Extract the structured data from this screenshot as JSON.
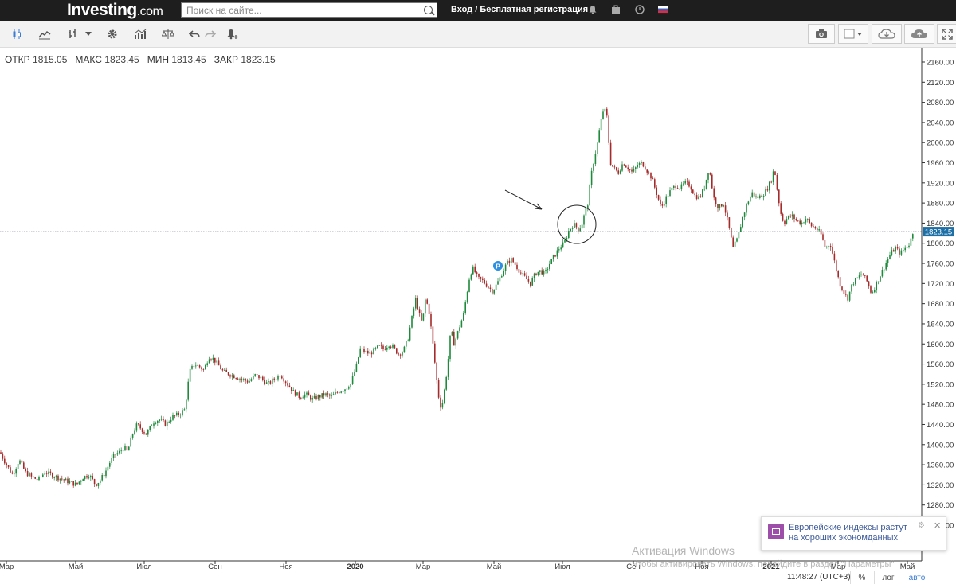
{
  "header": {
    "logo_main": "Investing",
    "logo_suffix": ".com",
    "search_placeholder": "Поиск на сайте...",
    "login_label": "Вход / Бесплатная регистрация"
  },
  "ohlc": {
    "open_label": "ОТКР",
    "open_value": "1815.05",
    "high_label": "МАКС",
    "high_value": "1823.45",
    "low_label": "МИН",
    "low_value": "1813.45",
    "close_label": "ЗАКР",
    "close_value": "1823.15"
  },
  "colors": {
    "up": "#1e8a3c",
    "down": "#a52a2a",
    "axis": "#333333",
    "badge": "#1e6fa5",
    "event_marker": "#2d8fe0"
  },
  "icons": {
    "top": [
      "bell-icon",
      "portfolio-icon",
      "clock-icon",
      "flag-icon"
    ],
    "toolbar_left": [
      "candle-chart-icon",
      "line-chart-icon",
      "bar-chart-icon",
      "dropdown-icon",
      "settings-icon",
      "indicators-icon",
      "compare-icon",
      "undo-icon",
      "redo-icon",
      "alert-icon"
    ],
    "toolbar_right": [
      "camera-icon",
      "layout-icon",
      "download-icon",
      "upload-icon",
      "fullscreen-icon"
    ]
  },
  "chart_data": {
    "type": "candlestick",
    "price_ticks": [
      "2160.00",
      "2120.00",
      "2080.00",
      "2040.00",
      "2000.00",
      "1960.00",
      "1920.00",
      "1880.00",
      "1840.00",
      "1800.00",
      "1760.00",
      "1720.00",
      "1680.00",
      "1640.00",
      "1600.00",
      "1560.00",
      "1520.00",
      "1480.00",
      "1440.00",
      "1400.00",
      "1360.00",
      "1320.00",
      "1280.00",
      "1240.00"
    ],
    "x_ticks": [
      "Мар",
      "Май",
      "Июл",
      "Сен",
      "Ноя",
      "2020",
      "Мар",
      "Май",
      "Июл",
      "Сен",
      "Ноя",
      "2021",
      "Мар",
      "Май"
    ],
    "x_ticks_bold": [
      false,
      false,
      false,
      false,
      false,
      true,
      false,
      false,
      false,
      false,
      false,
      true,
      false,
      false
    ],
    "last_price": "1823.15",
    "ylim": [
      1230,
      2180
    ],
    "price_path": [
      [
        0,
        1385
      ],
      [
        8,
        1360
      ],
      [
        16,
        1340
      ],
      [
        24,
        1370
      ],
      [
        32,
        1345
      ],
      [
        40,
        1335
      ],
      [
        48,
        1330
      ],
      [
        56,
        1345
      ],
      [
        64,
        1340
      ],
      [
        72,
        1335
      ],
      [
        80,
        1330
      ],
      [
        88,
        1325
      ],
      [
        96,
        1320
      ],
      [
        104,
        1335
      ],
      [
        112,
        1340
      ],
      [
        120,
        1320
      ],
      [
        126,
        1330
      ],
      [
        132,
        1345
      ],
      [
        138,
        1365
      ],
      [
        144,
        1380
      ],
      [
        150,
        1385
      ],
      [
        156,
        1395
      ],
      [
        160,
        1385
      ],
      [
        166,
        1420
      ],
      [
        172,
        1440
      ],
      [
        178,
        1430
      ],
      [
        184,
        1420
      ],
      [
        192,
        1445
      ],
      [
        200,
        1450
      ],
      [
        208,
        1440
      ],
      [
        216,
        1455
      ],
      [
        224,
        1460
      ],
      [
        232,
        1470
      ],
      [
        238,
        1545
      ],
      [
        244,
        1560
      ],
      [
        250,
        1555
      ],
      [
        256,
        1548
      ],
      [
        262,
        1575
      ],
      [
        268,
        1570
      ],
      [
        274,
        1558
      ],
      [
        280,
        1545
      ],
      [
        288,
        1540
      ],
      [
        296,
        1535
      ],
      [
        304,
        1530
      ],
      [
        312,
        1525
      ],
      [
        320,
        1538
      ],
      [
        328,
        1532
      ],
      [
        336,
        1520
      ],
      [
        344,
        1530
      ],
      [
        352,
        1540
      ],
      [
        360,
        1522
      ],
      [
        368,
        1505
      ],
      [
        376,
        1495
      ],
      [
        384,
        1500
      ],
      [
        392,
        1490
      ],
      [
        400,
        1495
      ],
      [
        408,
        1500
      ],
      [
        416,
        1495
      ],
      [
        424,
        1505
      ],
      [
        432,
        1510
      ],
      [
        440,
        1520
      ],
      [
        448,
        1560
      ],
      [
        452,
        1590
      ],
      [
        458,
        1585
      ],
      [
        464,
        1580
      ],
      [
        470,
        1588
      ],
      [
        476,
        1595
      ],
      [
        482,
        1590
      ],
      [
        488,
        1600
      ],
      [
        494,
        1592
      ],
      [
        500,
        1580
      ],
      [
        506,
        1585
      ],
      [
        512,
        1610
      ],
      [
        518,
        1660
      ],
      [
        522,
        1690
      ],
      [
        526,
        1660
      ],
      [
        530,
        1640
      ],
      [
        534,
        1690
      ],
      [
        538,
        1670
      ],
      [
        542,
        1620
      ],
      [
        546,
        1560
      ],
      [
        550,
        1500
      ],
      [
        554,
        1470
      ],
      [
        558,
        1510
      ],
      [
        562,
        1560
      ],
      [
        566,
        1630
      ],
      [
        570,
        1600
      ],
      [
        574,
        1620
      ],
      [
        578,
        1640
      ],
      [
        582,
        1660
      ],
      [
        586,
        1700
      ],
      [
        590,
        1740
      ],
      [
        594,
        1750
      ],
      [
        600,
        1730
      ],
      [
        606,
        1725
      ],
      [
        612,
        1715
      ],
      [
        618,
        1705
      ],
      [
        624,
        1720
      ],
      [
        630,
        1740
      ],
      [
        636,
        1760
      ],
      [
        642,
        1768
      ],
      [
        648,
        1755
      ],
      [
        654,
        1740
      ],
      [
        660,
        1730
      ],
      [
        666,
        1720
      ],
      [
        672,
        1740
      ],
      [
        678,
        1745
      ],
      [
        684,
        1740
      ],
      [
        690,
        1760
      ],
      [
        696,
        1775
      ],
      [
        702,
        1790
      ],
      [
        708,
        1800
      ],
      [
        714,
        1825
      ],
      [
        720,
        1838
      ],
      [
        726,
        1828
      ],
      [
        730,
        1835
      ],
      [
        734,
        1860
      ],
      [
        738,
        1880
      ],
      [
        742,
        1935
      ],
      [
        746,
        1970
      ],
      [
        750,
        2000
      ],
      [
        754,
        2040
      ],
      [
        758,
        2070
      ],
      [
        762,
        2050
      ],
      [
        766,
        1960
      ],
      [
        770,
        1950
      ],
      [
        776,
        1940
      ],
      [
        782,
        1960
      ],
      [
        788,
        1950
      ],
      [
        794,
        1940
      ],
      [
        800,
        1955
      ],
      [
        806,
        1960
      ],
      [
        812,
        1945
      ],
      [
        818,
        1930
      ],
      [
        824,
        1900
      ],
      [
        830,
        1870
      ],
      [
        836,
        1890
      ],
      [
        842,
        1905
      ],
      [
        848,
        1915
      ],
      [
        854,
        1910
      ],
      [
        860,
        1920
      ],
      [
        866,
        1915
      ],
      [
        872,
        1895
      ],
      [
        878,
        1890
      ],
      [
        884,
        1910
      ],
      [
        890,
        1950
      ],
      [
        896,
        1890
      ],
      [
        902,
        1870
      ],
      [
        908,
        1880
      ],
      [
        914,
        1840
      ],
      [
        920,
        1790
      ],
      [
        926,
        1810
      ],
      [
        932,
        1850
      ],
      [
        938,
        1880
      ],
      [
        944,
        1900
      ],
      [
        950,
        1890
      ],
      [
        956,
        1895
      ],
      [
        962,
        1905
      ],
      [
        968,
        1925
      ],
      [
        972,
        1950
      ],
      [
        976,
        1900
      ],
      [
        980,
        1860
      ],
      [
        984,
        1840
      ],
      [
        988,
        1850
      ],
      [
        994,
        1855
      ],
      [
        1000,
        1845
      ],
      [
        1006,
        1840
      ],
      [
        1012,
        1850
      ],
      [
        1018,
        1835
      ],
      [
        1024,
        1830
      ],
      [
        1030,
        1820
      ],
      [
        1036,
        1790
      ],
      [
        1042,
        1800
      ],
      [
        1048,
        1760
      ],
      [
        1054,
        1720
      ],
      [
        1060,
        1700
      ],
      [
        1064,
        1690
      ],
      [
        1070,
        1720
      ],
      [
        1076,
        1730
      ],
      [
        1082,
        1740
      ],
      [
        1088,
        1725
      ],
      [
        1094,
        1700
      ],
      [
        1100,
        1720
      ],
      [
        1106,
        1740
      ],
      [
        1112,
        1760
      ],
      [
        1118,
        1780
      ],
      [
        1124,
        1790
      ],
      [
        1130,
        1780
      ],
      [
        1136,
        1790
      ],
      [
        1142,
        1800
      ],
      [
        1146,
        1823
      ]
    ]
  }
}
